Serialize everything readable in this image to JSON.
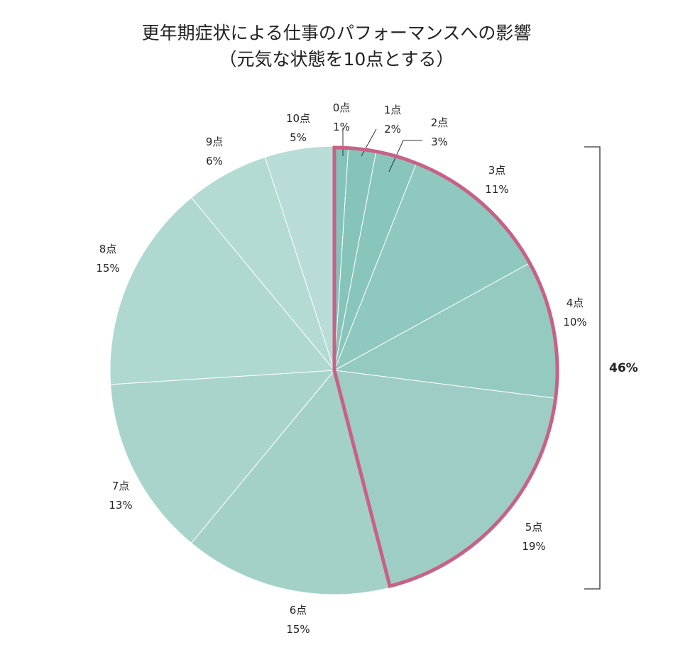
{
  "chart_data": {
    "type": "pie",
    "title": "更年期症状による仕事のパフォーマンスへの影響",
    "subtitle": "（元気な状態を10点とする）",
    "slices": [
      {
        "label": "0点",
        "value": 1,
        "value_label": "1%",
        "color": "#84c3b9"
      },
      {
        "label": "1点",
        "value": 2,
        "value_label": "2%",
        "color": "#86c3b9"
      },
      {
        "label": "2点",
        "value": 3,
        "value_label": "3%",
        "color": "#88c5bb"
      },
      {
        "label": "3点",
        "value": 11,
        "value_label": "11%",
        "color": "#8ec8bf"
      },
      {
        "label": "4点",
        "value": 10,
        "value_label": "10%",
        "color": "#95cac1"
      },
      {
        "label": "5点",
        "value": 19,
        "value_label": "19%",
        "color": "#9ecdc5"
      },
      {
        "label": "6点",
        "value": 15,
        "value_label": "15%",
        "color": "#a3d1c8"
      },
      {
        "label": "7点",
        "value": 13,
        "value_label": "13%",
        "color": "#a9d4cc"
      },
      {
        "label": "8点",
        "value": 15,
        "value_label": "15%",
        "color": "#afd8d1"
      },
      {
        "label": "9点",
        "value": 6,
        "value_label": "6%",
        "color": "#b4dad4"
      },
      {
        "label": "10点",
        "value": 5,
        "value_label": "5%",
        "color": "#b8dcd7"
      }
    ],
    "highlight": {
      "slices": [
        "0点",
        "1点",
        "2点",
        "3点",
        "4点",
        "5点"
      ],
      "total_label": "46%",
      "color": "#c96086"
    }
  }
}
